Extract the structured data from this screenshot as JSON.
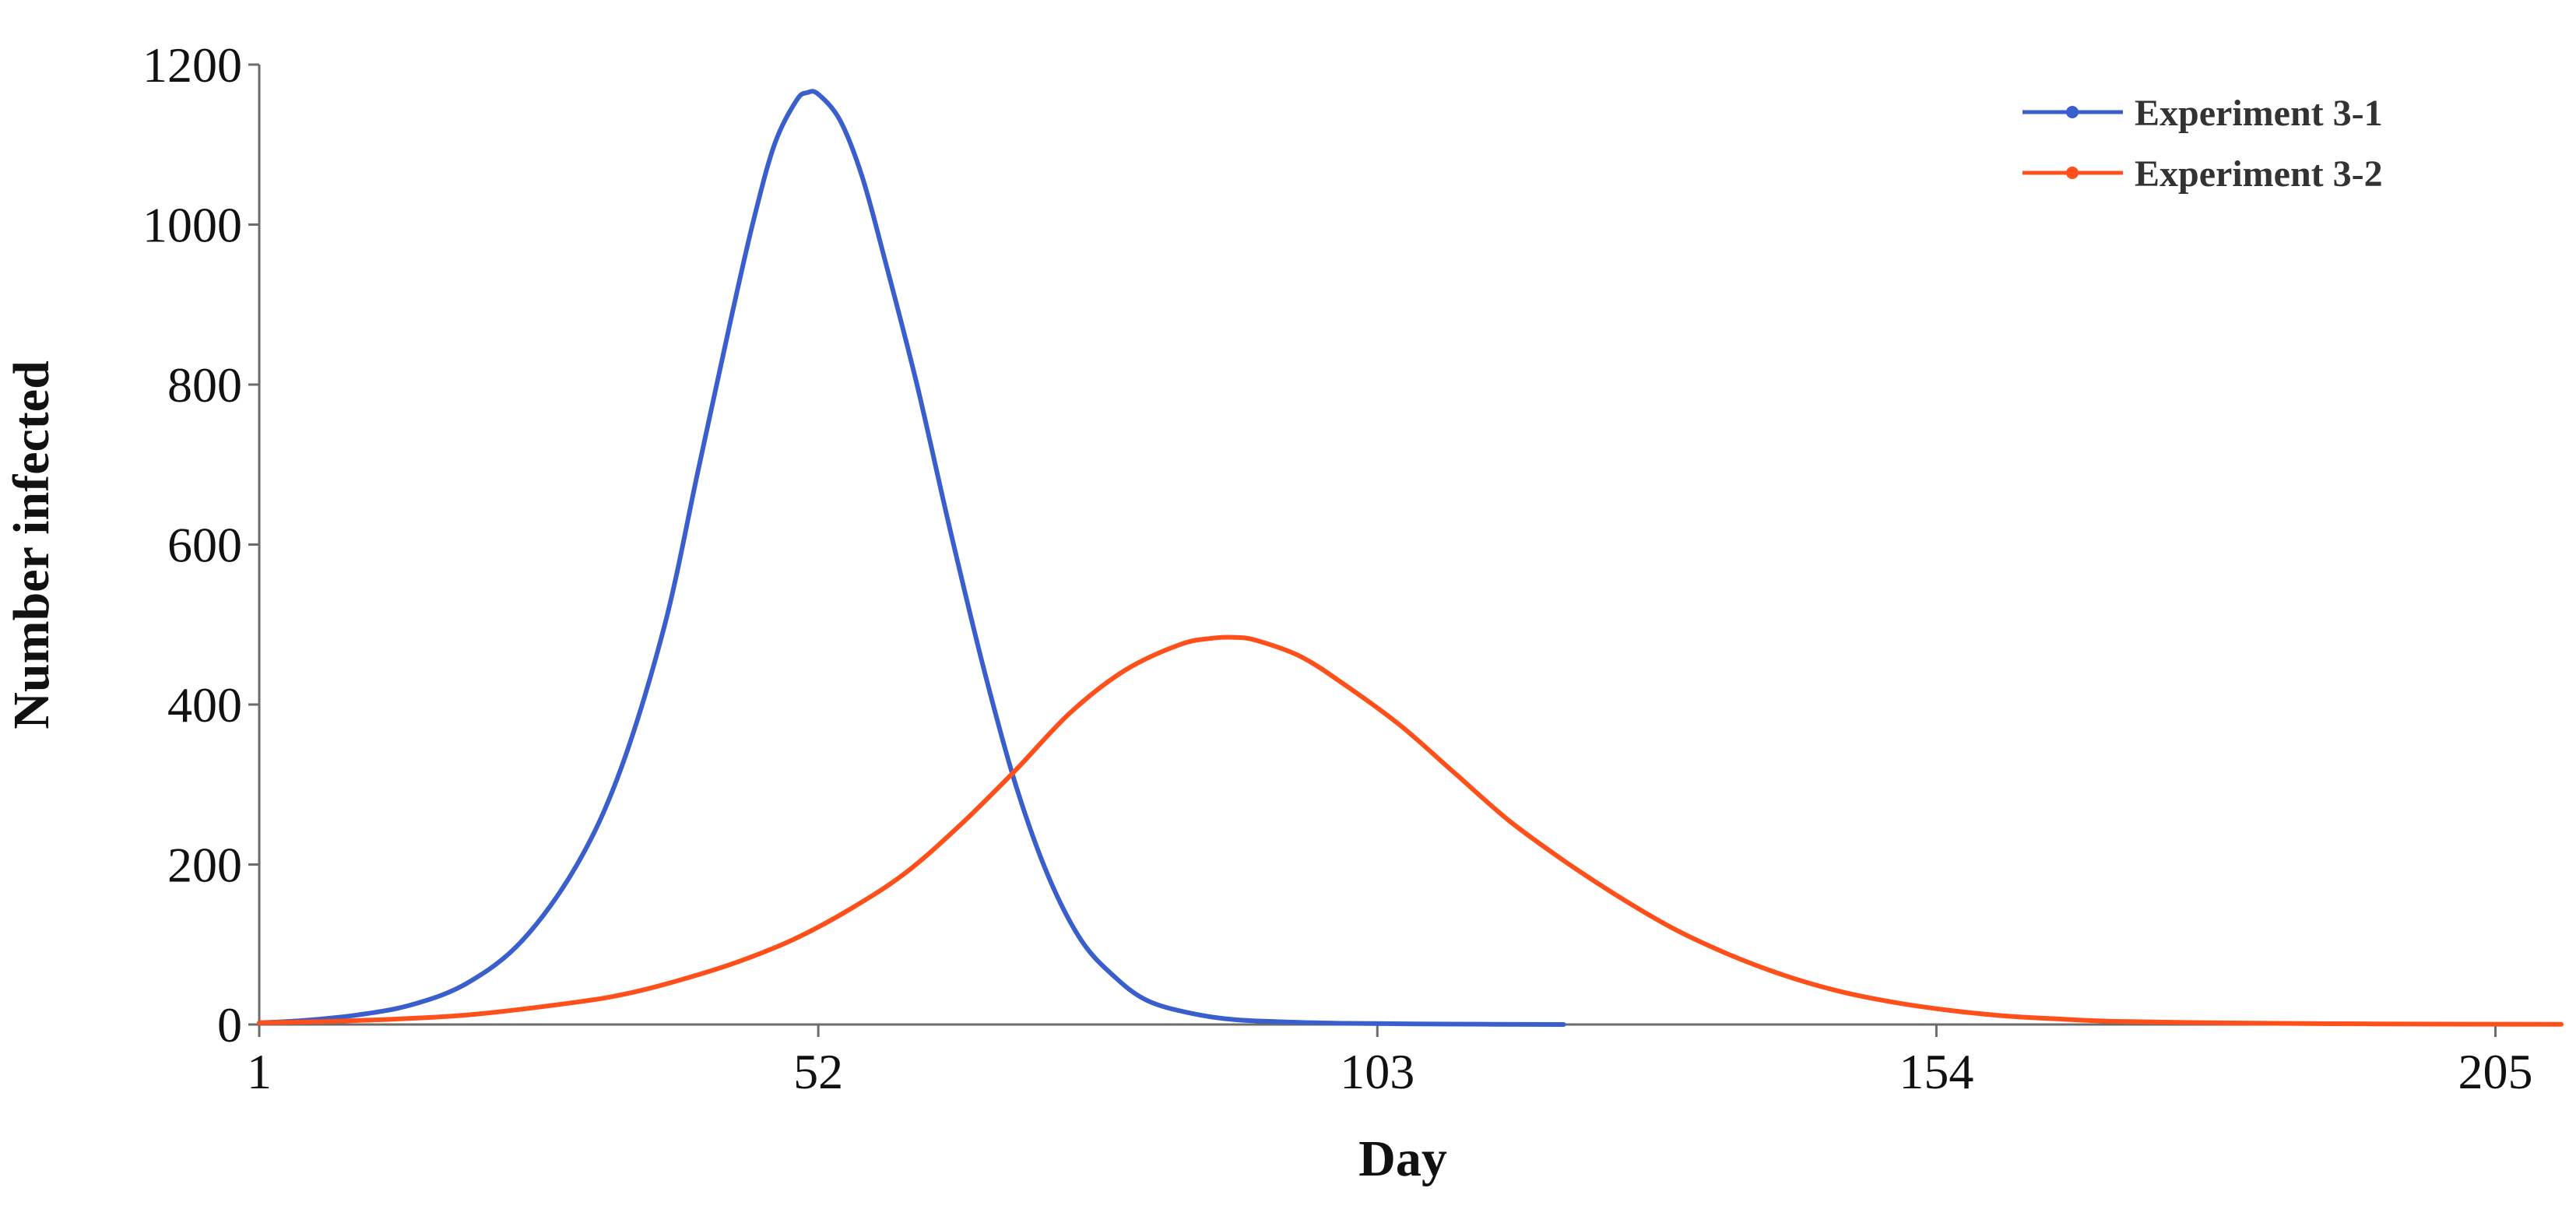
{
  "chart_data": {
    "type": "line",
    "xlabel": "Day",
    "ylabel": "Number infected",
    "xlim": [
      1,
      211
    ],
    "ylim": [
      0,
      1200
    ],
    "x_ticks": [
      1,
      52,
      103,
      154,
      205
    ],
    "y_ticks": [
      0,
      200,
      400,
      600,
      800,
      1000,
      1200
    ],
    "grid": false,
    "legend_position": "top-right",
    "series": [
      {
        "name": "Experiment 3-1",
        "color": "#3a5fcd",
        "points": [
          [
            1,
            2
          ],
          [
            5,
            5
          ],
          [
            10,
            12
          ],
          [
            15,
            25
          ],
          [
            20,
            52
          ],
          [
            25,
            105
          ],
          [
            30,
            200
          ],
          [
            34,
            320
          ],
          [
            38,
            500
          ],
          [
            41,
            690
          ],
          [
            44,
            880
          ],
          [
            46,
            1000
          ],
          [
            48,
            1100
          ],
          [
            50,
            1155
          ],
          [
            51,
            1165
          ],
          [
            52,
            1163
          ],
          [
            54,
            1130
          ],
          [
            56,
            1060
          ],
          [
            58,
            960
          ],
          [
            61,
            800
          ],
          [
            64,
            620
          ],
          [
            67,
            450
          ],
          [
            70,
            300
          ],
          [
            73,
            185
          ],
          [
            76,
            105
          ],
          [
            79,
            60
          ],
          [
            82,
            30
          ],
          [
            86,
            14
          ],
          [
            90,
            6
          ],
          [
            95,
            3
          ],
          [
            100,
            1.5
          ],
          [
            110,
            0.5
          ],
          [
            120,
            0
          ]
        ]
      },
      {
        "name": "Experiment 3-2",
        "color": "#ff4f1a",
        "points": [
          [
            1,
            2
          ],
          [
            10,
            5
          ],
          [
            20,
            12
          ],
          [
            30,
            28
          ],
          [
            35,
            40
          ],
          [
            40,
            58
          ],
          [
            45,
            80
          ],
          [
            50,
            108
          ],
          [
            55,
            145
          ],
          [
            60,
            190
          ],
          [
            65,
            250
          ],
          [
            70,
            318
          ],
          [
            75,
            390
          ],
          [
            80,
            443
          ],
          [
            85,
            475
          ],
          [
            88,
            483
          ],
          [
            90,
            484
          ],
          [
            92,
            480
          ],
          [
            96,
            460
          ],
          [
            100,
            425
          ],
          [
            105,
            375
          ],
          [
            110,
            315
          ],
          [
            115,
            255
          ],
          [
            120,
            205
          ],
          [
            125,
            160
          ],
          [
            130,
            120
          ],
          [
            135,
            88
          ],
          [
            140,
            62
          ],
          [
            145,
            42
          ],
          [
            150,
            28
          ],
          [
            155,
            18
          ],
          [
            160,
            11
          ],
          [
            165,
            7
          ],
          [
            170,
            4
          ],
          [
            180,
            2
          ],
          [
            190,
            1
          ],
          [
            200,
            0.5
          ],
          [
            211,
            0.2
          ]
        ]
      }
    ]
  }
}
